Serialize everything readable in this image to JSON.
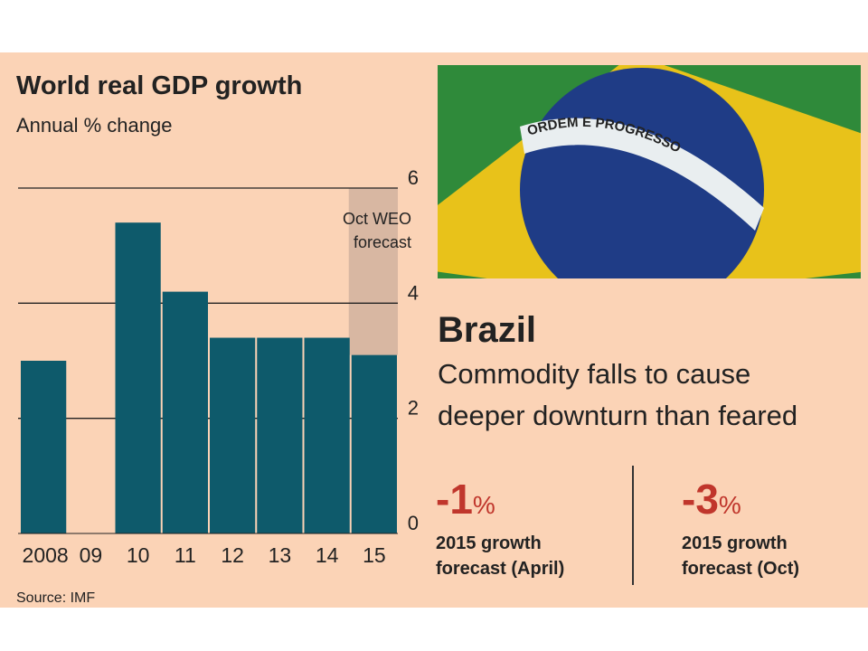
{
  "chart_data": {
    "type": "bar",
    "title": "World real GDP growth",
    "subtitle": "Annual % change",
    "categories": [
      "2008",
      "09",
      "10",
      "11",
      "12",
      "13",
      "14",
      "15"
    ],
    "values": [
      3.0,
      0,
      5.4,
      4.2,
      3.4,
      3.4,
      3.4,
      3.1
    ],
    "color": "#0e5a6b",
    "ylim": [
      0,
      6
    ],
    "yticks": [
      0,
      2,
      4,
      6
    ],
    "grid": true,
    "annotation": [
      "Oct WEO",
      "forecast"
    ],
    "source": "Source: IMF"
  },
  "article": {
    "flag_motto": "ORDEM E PROGRESSO",
    "headline": "Brazil",
    "standfirst": [
      "Commodity falls to cause",
      "deeper downturn than feared"
    ],
    "stats": [
      {
        "figure": "-1",
        "unit": "%",
        "caption": [
          "2015 growth",
          "forecast (April)"
        ]
      },
      {
        "figure": "-3",
        "unit": "%",
        "caption": [
          "2015 growth",
          "forecast (Oct)"
        ]
      }
    ]
  }
}
